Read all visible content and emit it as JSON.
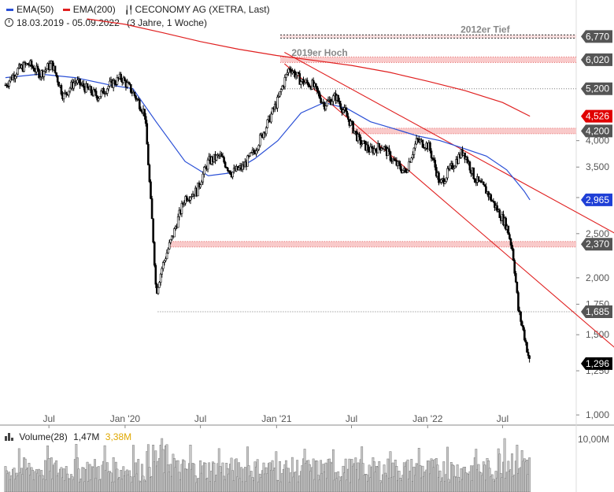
{
  "legend": {
    "ema50_label": "EMA(50)",
    "ema200_label": "EMA(200)",
    "title": "CECONOMY AG (XETRA, Last)",
    "date_range": "18.03.2019 - 05.09.2022",
    "period": "(3 Jahre, 1 Woche)",
    "ema50_color": "#2a4fd6",
    "ema200_color": "#e02020"
  },
  "volume_legend": {
    "label": "Volume(28)",
    "value": "1,47M",
    "value_highlight": "3,38M",
    "axis_label": "10,00M"
  },
  "chart_data": {
    "type": "line",
    "title": "CECONOMY AG (XETRA, Last)",
    "xlabel": "",
    "ylabel": "",
    "y_scale": "log",
    "ylim": [
      0.95,
      7.0
    ],
    "grid": false,
    "x_tick_labels": [
      "Jul",
      "Jan '20",
      "Jul",
      "Jan '21",
      "Jul",
      "Jan '22",
      "Jul"
    ],
    "x_tick_dates": [
      "2019-07-01",
      "2020-01-01",
      "2020-07-01",
      "2021-01-01",
      "2021-07-01",
      "2022-01-01",
      "2022-07-01"
    ],
    "y_ticks": [
      {
        "value": 1.0,
        "label": "1,000"
      },
      {
        "value": 1.25,
        "label": "1,250"
      },
      {
        "value": 1.5,
        "label": "1,500"
      },
      {
        "value": 1.75,
        "label": "1,750"
      },
      {
        "value": 2.0,
        "label": "2,000"
      },
      {
        "value": 2.5,
        "label": "2,500"
      },
      {
        "value": 3.0,
        "label": "3,000"
      },
      {
        "value": 3.5,
        "label": "3,500"
      },
      {
        "value": 4.0,
        "label": "4,000"
      }
    ],
    "price_labels": [
      {
        "value": 6.77,
        "label": "6,770",
        "bg": "#555555"
      },
      {
        "value": 6.02,
        "label": "6,020",
        "bg": "#555555"
      },
      {
        "value": 5.2,
        "label": "5,200",
        "bg": "#555555"
      },
      {
        "value": 4.526,
        "label": "4,526",
        "bg": "#e00000"
      },
      {
        "value": 4.2,
        "label": "4,200",
        "bg": "#555555"
      },
      {
        "value": 2.965,
        "label": "2,965",
        "bg": "#1f3fd6"
      },
      {
        "value": 2.37,
        "label": "2,370",
        "bg": "#555555"
      },
      {
        "value": 1.685,
        "label": "1,685",
        "bg": "#555555"
      },
      {
        "value": 1.296,
        "label": "1,296",
        "bg": "#000000"
      }
    ],
    "annotations": [
      {
        "text": "2019er Hoch",
        "value": 6.02,
        "date": "2021-04-15"
      },
      {
        "text": "2012er Tief",
        "value": 6.77,
        "date": "2022-05-20"
      }
    ],
    "horizontal_zones": [
      {
        "value": 6.77,
        "from": "2021-01-10",
        "style": "double-dotted"
      },
      {
        "value": 6.02,
        "from": "2021-01-10",
        "style": "band"
      },
      {
        "value": 5.2,
        "from": "2021-01-10",
        "style": "dotted"
      },
      {
        "value": 4.2,
        "from": "2021-07-01",
        "style": "band"
      },
      {
        "value": 2.37,
        "from": "2020-04-20",
        "style": "band"
      },
      {
        "value": 1.685,
        "from": "2020-03-20",
        "style": "dotted"
      }
    ],
    "trendlines": [
      {
        "from": [
          "2021-01-20",
          6.25
        ],
        "to": [
          "2022-09-30",
          3.7
        ],
        "extend_to": [
          "2023-03-31",
          2.5
        ]
      },
      {
        "from": [
          "2021-01-20",
          5.9
        ],
        "to": [
          "2022-06-01",
          2.7
        ],
        "extend_to": [
          "2023-03-31",
          1.4
        ]
      }
    ],
    "series": [
      {
        "name": "CECONOMY AG (XETRA, Last)",
        "style": "candles",
        "x": [
          "2019-03-18",
          "2019-04-15",
          "2019-05-13",
          "2019-06-10",
          "2019-07-08",
          "2019-08-05",
          "2019-09-02",
          "2019-09-30",
          "2019-10-28",
          "2019-11-25",
          "2019-12-23",
          "2020-01-20",
          "2020-02-17",
          "2020-03-02",
          "2020-03-16",
          "2020-03-30",
          "2020-04-27",
          "2020-05-25",
          "2020-06-22",
          "2020-07-20",
          "2020-08-17",
          "2020-09-14",
          "2020-10-12",
          "2020-11-09",
          "2020-12-07",
          "2021-01-04",
          "2021-02-01",
          "2021-03-01",
          "2021-03-29",
          "2021-04-26",
          "2021-05-24",
          "2021-06-21",
          "2021-07-19",
          "2021-08-16",
          "2021-09-13",
          "2021-10-11",
          "2021-11-08",
          "2021-12-06",
          "2022-01-03",
          "2022-01-31",
          "2022-02-28",
          "2022-03-28",
          "2022-04-25",
          "2022-05-23",
          "2022-06-20",
          "2022-07-11",
          "2022-07-25",
          "2022-08-08",
          "2022-08-22",
          "2022-09-05"
        ],
        "values": [
          5.3,
          5.7,
          5.9,
          5.6,
          5.9,
          5.0,
          5.4,
          5.2,
          5.0,
          5.3,
          5.5,
          5.1,
          4.6,
          3.0,
          1.85,
          2.1,
          2.5,
          3.0,
          3.1,
          3.6,
          3.7,
          3.4,
          3.5,
          3.8,
          4.3,
          4.9,
          5.8,
          5.4,
          5.3,
          4.8,
          5.0,
          4.5,
          4.0,
          3.8,
          3.9,
          3.6,
          3.4,
          4.0,
          3.9,
          3.2,
          3.5,
          3.8,
          3.3,
          3.1,
          2.8,
          2.6,
          2.3,
          1.7,
          1.5,
          1.296
        ]
      },
      {
        "name": "EMA(50)",
        "style": "line",
        "color": "#2a4fd6",
        "x": [
          "2019-03-18",
          "2019-06-10",
          "2019-09-02",
          "2019-11-25",
          "2020-01-20",
          "2020-03-16",
          "2020-05-25",
          "2020-07-20",
          "2020-09-14",
          "2020-11-09",
          "2021-01-04",
          "2021-03-01",
          "2021-04-26",
          "2021-06-21",
          "2021-08-16",
          "2021-10-11",
          "2021-12-06",
          "2022-01-31",
          "2022-03-28",
          "2022-05-23",
          "2022-07-11",
          "2022-08-22",
          "2022-09-05"
        ],
        "values": [
          5.5,
          5.6,
          5.5,
          5.3,
          5.2,
          4.4,
          3.6,
          3.35,
          3.4,
          3.65,
          4.0,
          4.6,
          4.85,
          4.7,
          4.4,
          4.25,
          4.1,
          4.0,
          3.85,
          3.7,
          3.45,
          3.1,
          2.965
        ]
      },
      {
        "name": "EMA(200)",
        "style": "line",
        "color": "#e02020",
        "x": [
          "2019-10-01",
          "2020-01-01",
          "2020-04-01",
          "2020-07-01",
          "2020-10-01",
          "2021-01-01",
          "2021-04-01",
          "2021-07-01",
          "2021-10-01",
          "2022-01-01",
          "2022-04-01",
          "2022-07-01",
          "2022-09-05"
        ],
        "values": [
          7.4,
          7.2,
          6.9,
          6.6,
          6.35,
          6.15,
          6.0,
          5.85,
          5.65,
          5.4,
          5.15,
          4.85,
          4.526
        ]
      }
    ]
  }
}
